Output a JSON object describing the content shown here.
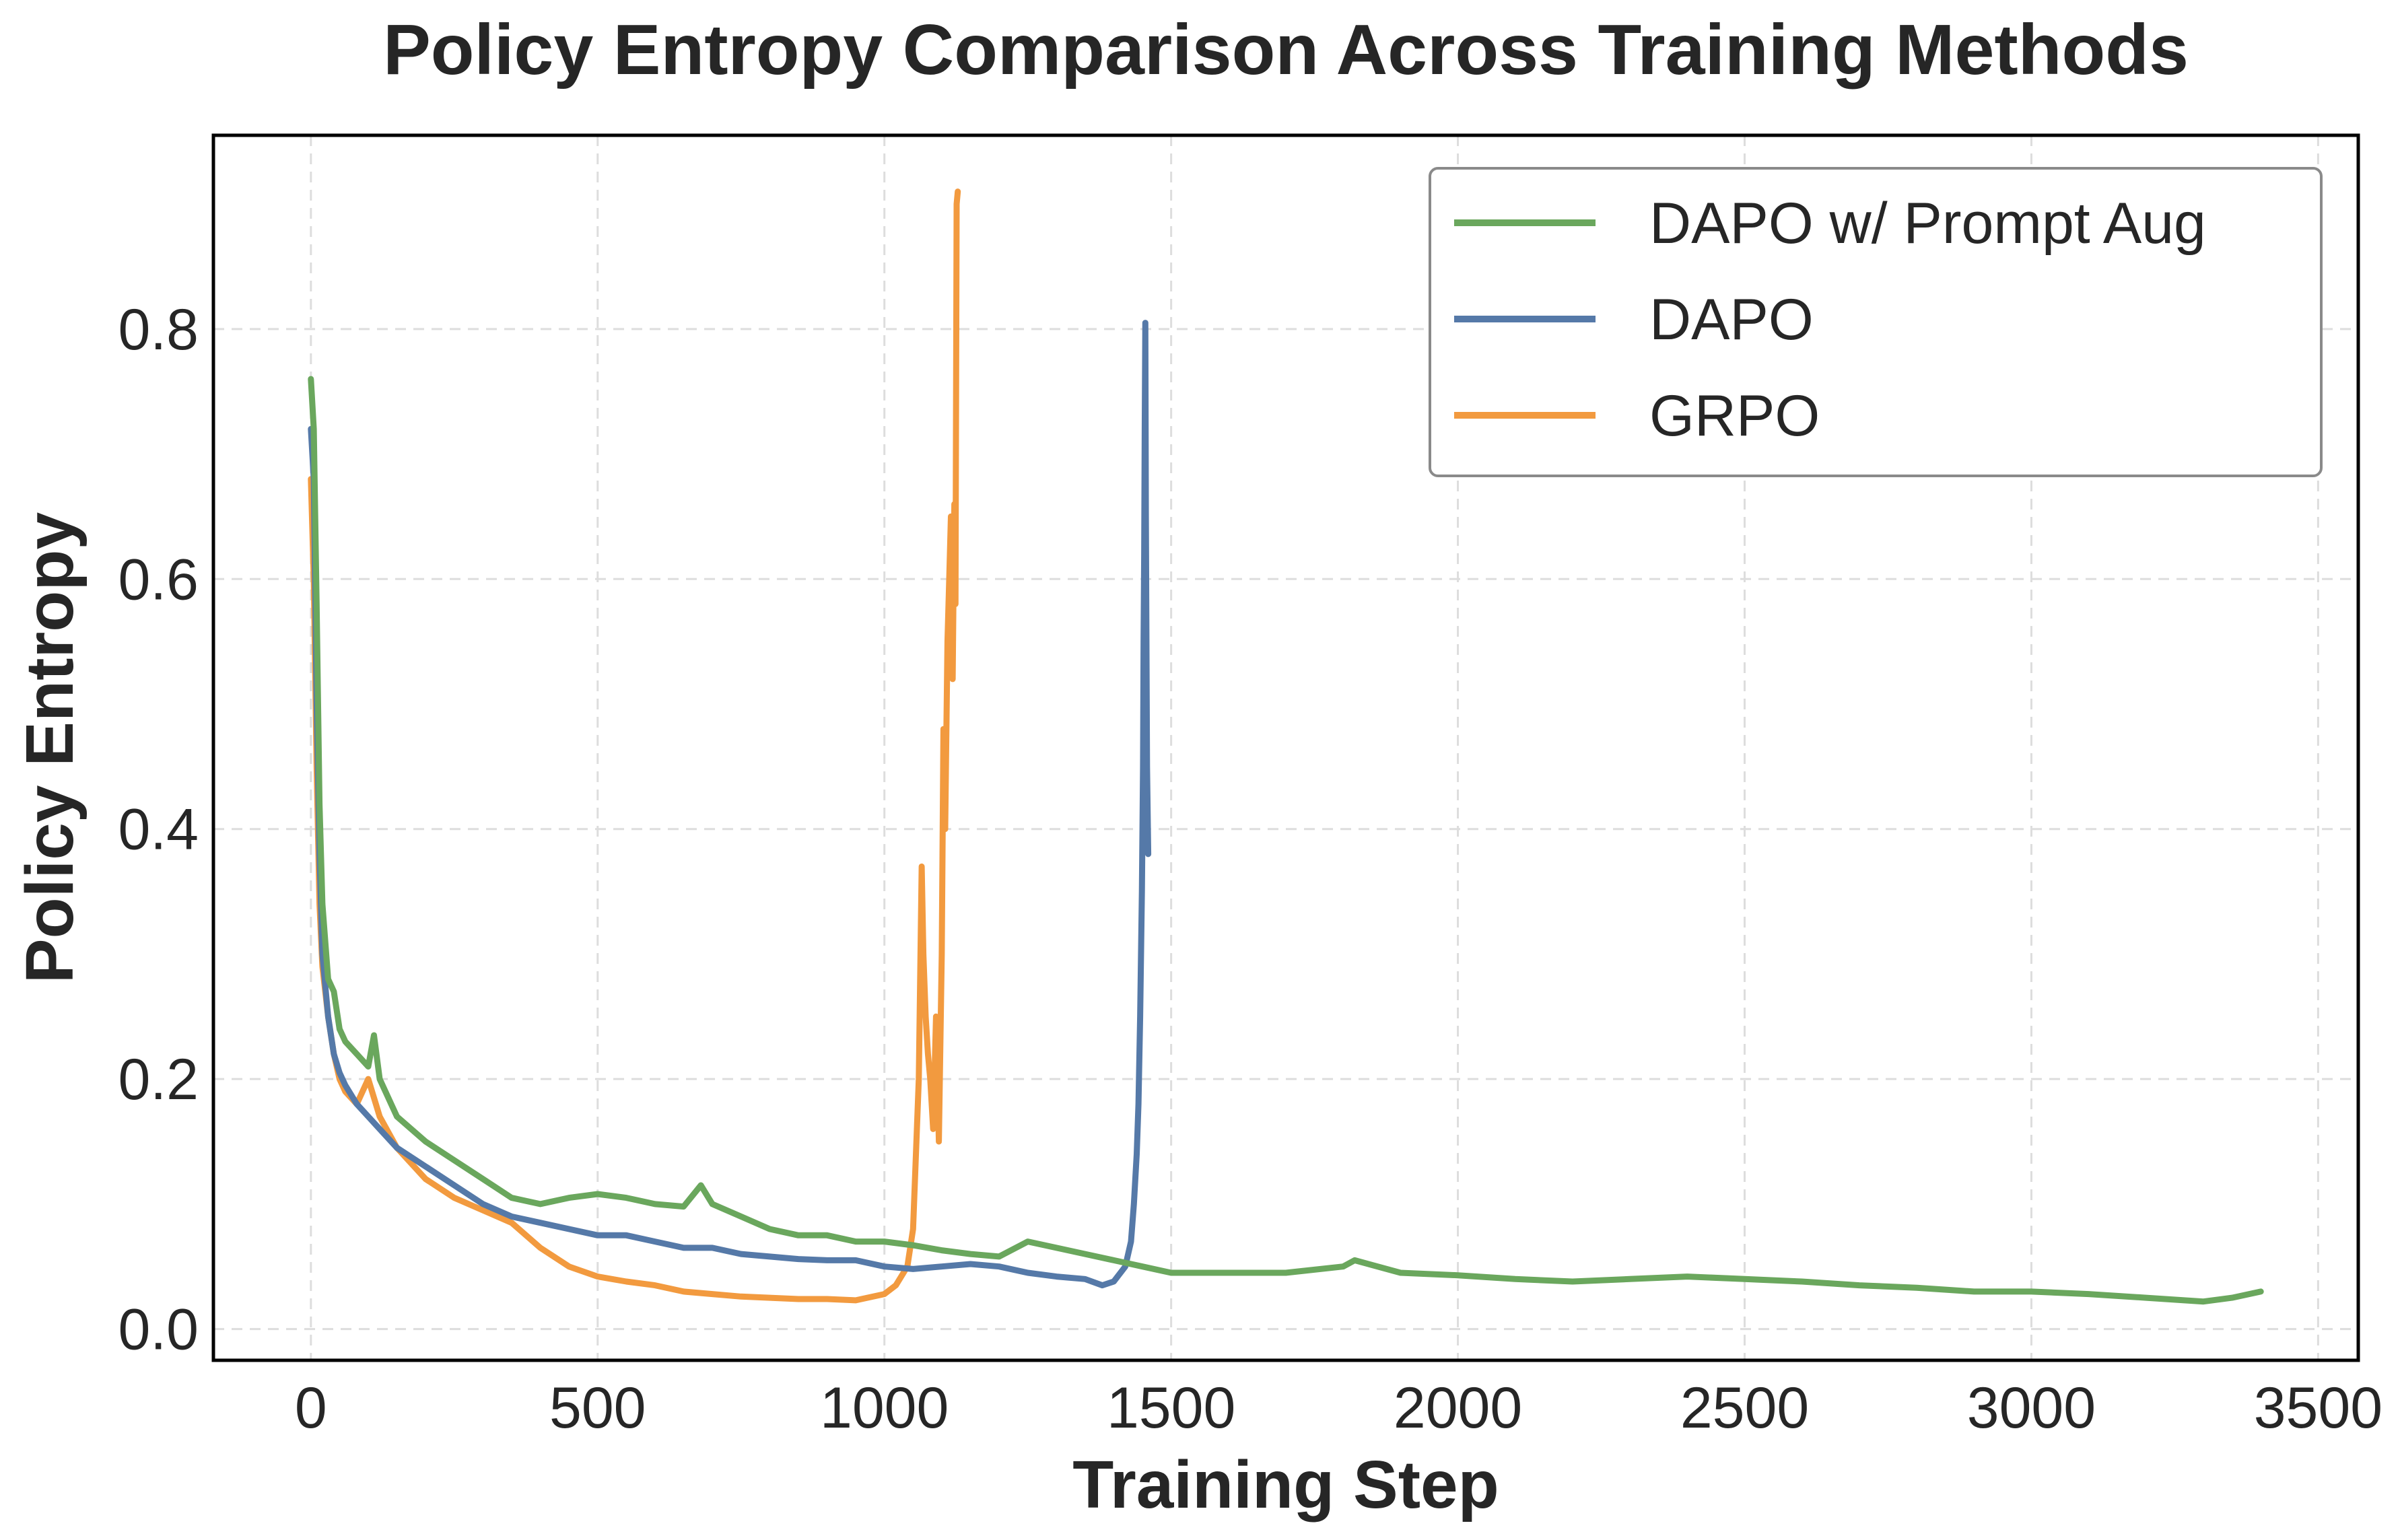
{
  "chart_data": {
    "type": "line",
    "title": "Policy Entropy Comparison Across Training Methods",
    "xlabel": "Training Step",
    "ylabel": "Policy Entropy",
    "xlim": [
      -170,
      3570
    ],
    "ylim": [
      -0.025,
      0.955
    ],
    "xticks": [
      0,
      500,
      1000,
      1500,
      2000,
      2500,
      3000,
      3500
    ],
    "yticks": [
      0.0,
      0.2,
      0.4,
      0.6,
      0.8
    ],
    "grid": true,
    "legend_position": "top-right",
    "series": [
      {
        "name": "DAPO w/ Prompt Aug",
        "color": "#6aa75d",
        "x": [
          0,
          5,
          10,
          15,
          20,
          30,
          40,
          50,
          60,
          80,
          100,
          110,
          120,
          150,
          200,
          250,
          300,
          350,
          400,
          450,
          500,
          550,
          600,
          650,
          680,
          700,
          750,
          800,
          850,
          900,
          950,
          1000,
          1050,
          1100,
          1150,
          1200,
          1250,
          1300,
          1350,
          1400,
          1450,
          1500,
          1600,
          1700,
          1800,
          1820,
          1900,
          2000,
          2100,
          2200,
          2300,
          2400,
          2500,
          2600,
          2700,
          2800,
          2900,
          3000,
          3100,
          3200,
          3300,
          3350,
          3400
        ],
        "y": [
          0.76,
          0.72,
          0.58,
          0.42,
          0.34,
          0.28,
          0.27,
          0.24,
          0.23,
          0.22,
          0.21,
          0.235,
          0.2,
          0.17,
          0.15,
          0.135,
          0.12,
          0.105,
          0.1,
          0.105,
          0.108,
          0.105,
          0.1,
          0.098,
          0.115,
          0.1,
          0.09,
          0.08,
          0.075,
          0.075,
          0.07,
          0.07,
          0.067,
          0.063,
          0.06,
          0.058,
          0.07,
          0.065,
          0.06,
          0.055,
          0.05,
          0.045,
          0.045,
          0.045,
          0.05,
          0.055,
          0.045,
          0.043,
          0.04,
          0.038,
          0.04,
          0.042,
          0.04,
          0.038,
          0.035,
          0.033,
          0.03,
          0.03,
          0.028,
          0.025,
          0.022,
          0.025,
          0.03
        ]
      },
      {
        "name": "DAPO",
        "color": "#5579a8",
        "x": [
          0,
          5,
          10,
          15,
          20,
          30,
          40,
          50,
          60,
          80,
          100,
          120,
          150,
          200,
          250,
          300,
          350,
          400,
          450,
          500,
          550,
          600,
          650,
          700,
          750,
          800,
          850,
          900,
          950,
          1000,
          1050,
          1100,
          1150,
          1200,
          1250,
          1300,
          1350,
          1380,
          1400,
          1420,
          1430,
          1435,
          1440,
          1443,
          1446,
          1449,
          1451,
          1452,
          1453,
          1454,
          1455,
          1456,
          1458,
          1460
        ],
        "y": [
          0.72,
          0.68,
          0.5,
          0.38,
          0.3,
          0.25,
          0.22,
          0.205,
          0.195,
          0.18,
          0.17,
          0.16,
          0.145,
          0.13,
          0.115,
          0.1,
          0.09,
          0.085,
          0.08,
          0.075,
          0.075,
          0.07,
          0.065,
          0.065,
          0.06,
          0.058,
          0.056,
          0.055,
          0.055,
          0.05,
          0.048,
          0.05,
          0.052,
          0.05,
          0.045,
          0.042,
          0.04,
          0.035,
          0.038,
          0.05,
          0.07,
          0.1,
          0.14,
          0.18,
          0.25,
          0.35,
          0.45,
          0.55,
          0.62,
          0.72,
          0.805,
          0.65,
          0.45,
          0.38
        ]
      },
      {
        "name": "GRPO",
        "color": "#f29a3f",
        "x": [
          0,
          5,
          10,
          15,
          20,
          30,
          40,
          50,
          60,
          80,
          100,
          120,
          150,
          200,
          250,
          300,
          350,
          400,
          450,
          500,
          550,
          600,
          650,
          700,
          750,
          800,
          850,
          900,
          950,
          1000,
          1020,
          1040,
          1050,
          1060,
          1065,
          1068,
          1072,
          1076,
          1080,
          1085,
          1090,
          1095,
          1100,
          1103,
          1106,
          1110,
          1113,
          1116,
          1119,
          1122,
          1124,
          1126,
          1128
        ],
        "y": [
          0.68,
          0.6,
          0.45,
          0.34,
          0.29,
          0.25,
          0.22,
          0.2,
          0.19,
          0.18,
          0.2,
          0.17,
          0.145,
          0.12,
          0.105,
          0.095,
          0.085,
          0.065,
          0.05,
          0.042,
          0.038,
          0.035,
          0.03,
          0.028,
          0.026,
          0.025,
          0.024,
          0.024,
          0.023,
          0.028,
          0.035,
          0.05,
          0.08,
          0.2,
          0.37,
          0.3,
          0.25,
          0.22,
          0.2,
          0.16,
          0.25,
          0.15,
          0.3,
          0.48,
          0.4,
          0.55,
          0.6,
          0.65,
          0.52,
          0.66,
          0.58,
          0.9,
          0.91
        ]
      }
    ]
  }
}
